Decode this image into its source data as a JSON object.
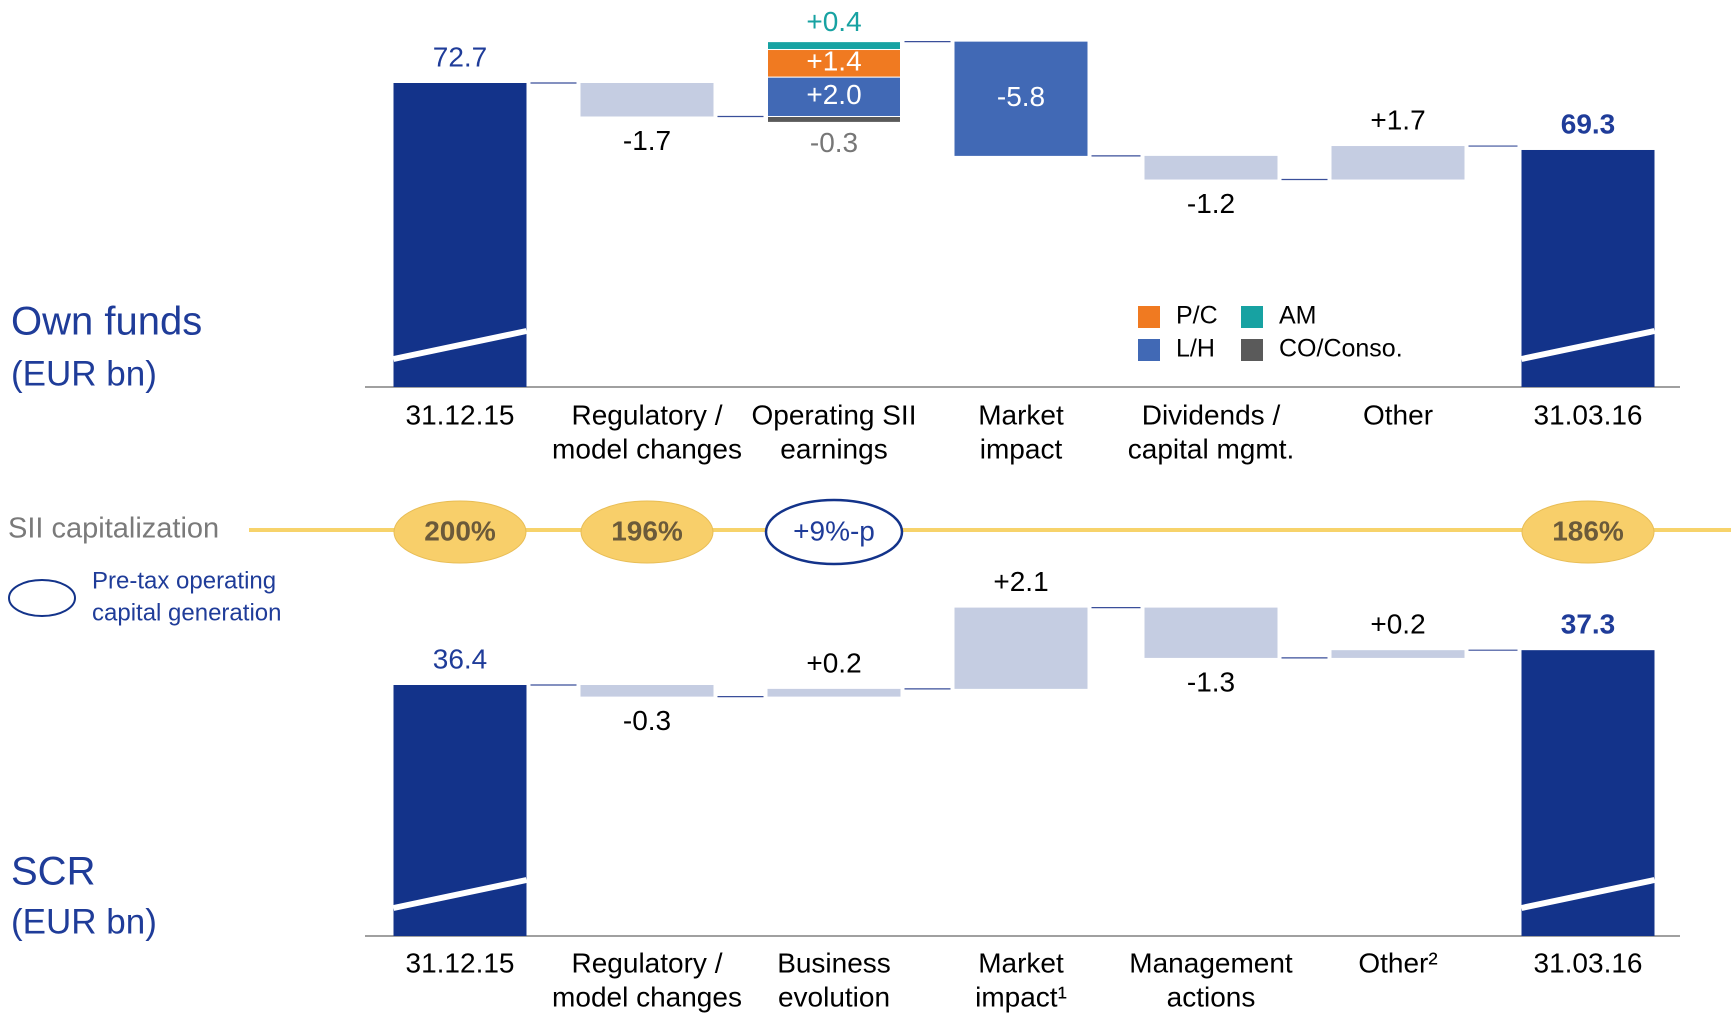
{
  "chart_data": [
    {
      "type": "waterfall",
      "title": "Own funds",
      "subtitle": "(EUR bn)",
      "categories": [
        [
          "31.12.15"
        ],
        [
          "Regulatory /",
          "model changes"
        ],
        [
          "Operating SII",
          "earnings"
        ],
        [
          "Market",
          "impact"
        ],
        [
          "Dividends /",
          "capital mgmt."
        ],
        [
          "Other"
        ],
        [
          "31.03.16"
        ]
      ],
      "values": [
        72.7,
        -1.7,
        null,
        -5.8,
        -1.2,
        1.7,
        69.3
      ],
      "value_labels": [
        "72.7",
        "-1.7",
        null,
        "-5.8",
        "-1.2",
        "+1.7",
        "69.3"
      ],
      "colors": [
        "#13338a",
        "#c5cde2",
        null,
        "#4169b5",
        "#c5cde2",
        "#c5cde2",
        "#13338a"
      ],
      "label_colors": [
        "#1f3c99",
        "#000000",
        null,
        "#ffffff",
        "#000000",
        "#000000",
        "#1f3c99"
      ],
      "label_weights": [
        "normal",
        "normal",
        null,
        "normal",
        "normal",
        "normal",
        "bold"
      ],
      "stack": {
        "index": 2,
        "series": [
          {
            "name": "CO/Conso.",
            "color": "#5a5a5a",
            "label_color": "#777777",
            "value": -0.3,
            "label": "-0.3"
          },
          {
            "name": "L/H",
            "color": "#4169b5",
            "label_color": "#ffffff",
            "value": 2.0,
            "label": "+2.0"
          },
          {
            "name": "P/C",
            "color": "#f07a21",
            "label_color": "#ffffff",
            "value": 1.4,
            "label": "+1.4"
          },
          {
            "name": "AM",
            "color": "#17a2a2",
            "label_color": "#17a2a2",
            "value": 0.4,
            "label": "+0.4"
          }
        ]
      },
      "legend": true
    },
    {
      "type": "waterfall",
      "title": "SCR",
      "subtitle": "(EUR bn)",
      "categories": [
        [
          "31.12.15"
        ],
        [
          "Regulatory /",
          "model changes"
        ],
        [
          "Business",
          "evolution"
        ],
        [
          "Market",
          "impact¹"
        ],
        [
          "Management",
          "actions"
        ],
        [
          "Other²"
        ],
        [
          "31.03.16"
        ]
      ],
      "values": [
        36.4,
        -0.3,
        0.2,
        2.1,
        -1.3,
        0.2,
        37.3
      ],
      "value_labels": [
        "36.4",
        "-0.3",
        "+0.2",
        "+2.1",
        "-1.3",
        "+0.2",
        "37.3"
      ],
      "colors": [
        "#13338a",
        "#c5cde2",
        "#c5cde2",
        "#c5cde2",
        "#c5cde2",
        "#c5cde2",
        "#13338a"
      ],
      "label_colors": [
        "#1f3c99",
        "#000000",
        "#000000",
        "#000000",
        "#000000",
        "#000000",
        "#1f3c99"
      ],
      "label_weights": [
        "normal",
        "normal",
        "normal",
        "normal",
        "normal",
        "normal",
        "bold"
      ],
      "legend": false
    }
  ],
  "sii": {
    "label": "SII capitalization",
    "ratios": [
      200,
      196,
      null,
      null,
      null,
      null,
      186
    ],
    "ratio_labels": [
      "200%",
      "196%",
      null,
      null,
      null,
      null,
      "186%"
    ],
    "generation": [
      null,
      null,
      9,
      null,
      null,
      null,
      null
    ],
    "generation_labels": [
      null,
      null,
      "+9%-p",
      null,
      null,
      null,
      null
    ],
    "note": [
      "Pre-tax operating",
      "capital generation"
    ]
  }
}
